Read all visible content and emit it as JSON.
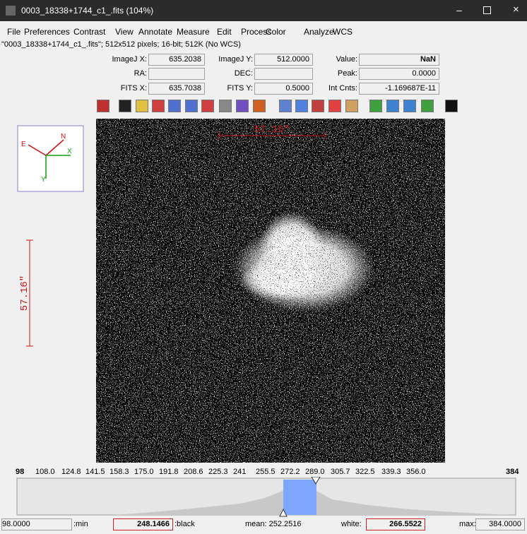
{
  "window": {
    "title": "0003_18338+1744_c1_.fits (104%)"
  },
  "menu": [
    "File",
    "Preferences",
    "Contrast",
    "View",
    "Annotate",
    "Measure",
    "Edit",
    "Process",
    "Color",
    "Analyze",
    "WCS"
  ],
  "file_info": "\"0003_18338+1744_c1_.fits\"; 512x512 pixels; 16-bit; 512K (No WCS)",
  "fields": [
    {
      "label": "ImageJ X:",
      "value": "635.2038"
    },
    {
      "label": "ImageJ Y:",
      "value": "512.0000"
    },
    {
      "label": "Value:",
      "value": "NaN"
    },
    {
      "label": "RA:"
    },
    {
      "label": "DEC:"
    },
    {
      "label": "Peak:",
      "value": "0.0000"
    },
    {
      "label": "FITS X:",
      "value": "635.7038"
    },
    {
      "label": "FITS Y:",
      "value": "0.5000"
    },
    {
      "label": "Int Cnts:",
      "value": "-1.169687E-11"
    }
  ],
  "compass": {
    "east": "E",
    "north": "N",
    "x": "X",
    "y": "Y"
  },
  "scale_bars": {
    "horizontal": "57.16\"",
    "vertical": "57.16\""
  },
  "histogram": {
    "ticks": [
      "98",
      "108.0",
      "124.8",
      "141.5",
      "158.3",
      "175.0",
      "191.8",
      "208.6",
      "225.3",
      "241",
      "255.5",
      "272.2",
      "289.0",
      "305.7",
      "322.5",
      "339.3",
      "356.0",
      "384"
    ]
  },
  "stats": {
    "min": "98.0000",
    "min_label": ":min",
    "black": "248.1466",
    "black_label": ":black",
    "mean": "mean: 252.2516",
    "white_label": "white:",
    "white": "266.5522",
    "max_label": "max:",
    "max": "384.0000"
  }
}
